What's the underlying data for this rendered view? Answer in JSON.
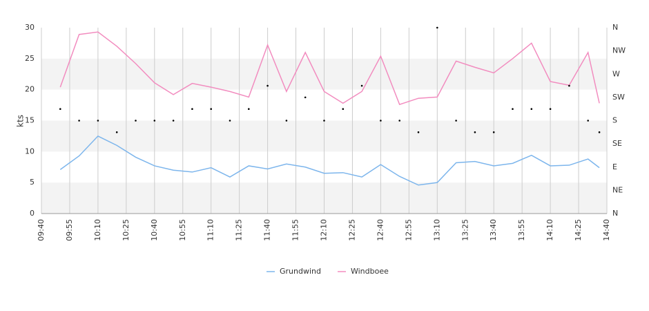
{
  "chart_data": {
    "type": "line",
    "y_label": "kts",
    "x": [
      "09:50",
      "10:00",
      "10:10",
      "10:20",
      "10:30",
      "10:40",
      "10:50",
      "11:00",
      "11:10",
      "11:20",
      "11:30",
      "11:40",
      "11:50",
      "12:00",
      "12:10",
      "12:20",
      "12:30",
      "12:40",
      "12:50",
      "13:00",
      "13:10",
      "13:20",
      "13:30",
      "13:40",
      "13:50",
      "14:00",
      "14:10",
      "14:20",
      "14:30",
      "14:36"
    ],
    "series": [
      {
        "name": "Grundwind",
        "color": "#7cb5ec",
        "values": [
          7.1,
          9.3,
          12.5,
          11.0,
          9.1,
          7.7,
          7.0,
          6.7,
          7.4,
          5.9,
          7.7,
          7.2,
          8.0,
          7.5,
          6.5,
          6.6,
          5.9,
          7.9,
          6.0,
          4.6,
          5.0,
          8.2,
          8.4,
          7.7,
          8.1,
          9.4,
          7.7,
          7.8,
          8.8,
          7.4
        ]
      },
      {
        "name": "Windboee",
        "color": "#f28cbf",
        "values": [
          20.4,
          28.9,
          29.3,
          27.0,
          24.2,
          21.1,
          19.2,
          21.0,
          20.4,
          19.7,
          18.8,
          27.2,
          19.7,
          26.0,
          19.7,
          17.8,
          19.7,
          25.4,
          17.6,
          18.6,
          18.8,
          24.6,
          23.6,
          22.7,
          25.0,
          27.5,
          21.3,
          20.7,
          26.0,
          17.8
        ]
      },
      {
        "color": "#000000",
        "axis": "y2",
        "marker": "dot",
        "values": [
          202.5,
          180,
          180,
          157.5,
          180,
          180,
          180,
          202.5,
          202.5,
          180,
          202.5,
          247.5,
          180,
          225,
          180,
          202.5,
          247.5,
          180,
          180,
          157.5,
          360,
          180,
          157.5,
          157.5,
          202.5,
          202.5,
          202.5,
          247.5,
          180,
          157.5
        ]
      }
    ],
    "xlim": [
      "09:40",
      "14:40"
    ],
    "xticks": [
      "09:40",
      "09:55",
      "10:10",
      "10:25",
      "10:40",
      "10:55",
      "11:10",
      "11:25",
      "11:40",
      "11:55",
      "12:10",
      "12:25",
      "12:40",
      "12:55",
      "13:10",
      "13:25",
      "13:40",
      "13:55",
      "14:10",
      "14:25",
      "14:40"
    ],
    "ylim": [
      0,
      30
    ],
    "yticks": [
      0,
      5,
      10,
      15,
      20,
      25,
      30
    ],
    "y2lim": [
      0,
      360
    ],
    "y2ticks": [
      {
        "value": 0,
        "label": "N"
      },
      {
        "value": 45,
        "label": "NE"
      },
      {
        "value": 90,
        "label": "E"
      },
      {
        "value": 135,
        "label": "SE"
      },
      {
        "value": 180,
        "label": "S"
      },
      {
        "value": 225,
        "label": "SW"
      },
      {
        "value": 270,
        "label": "W"
      },
      {
        "value": 315,
        "label": "NW"
      },
      {
        "value": 360,
        "label": "N"
      }
    ],
    "grid": true,
    "bands": true,
    "legend": "bottom"
  }
}
